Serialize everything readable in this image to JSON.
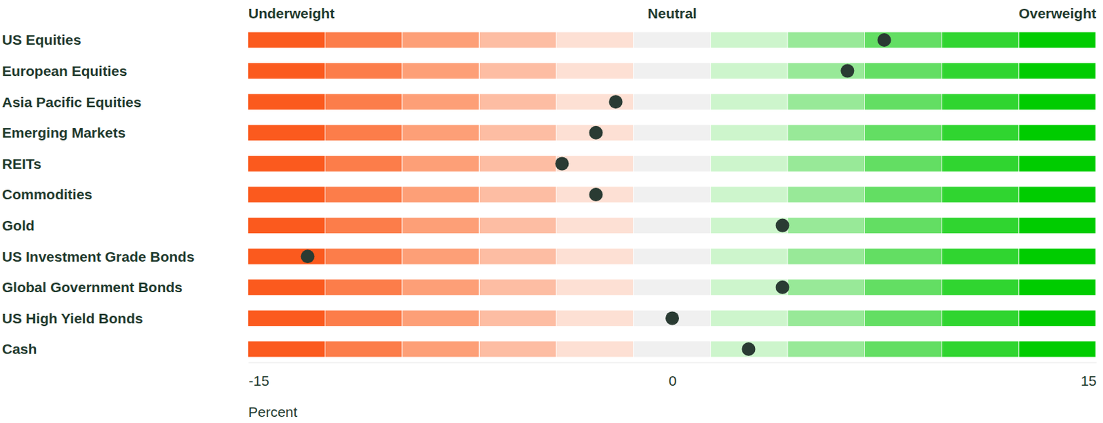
{
  "chart_data": {
    "type": "dot",
    "orientation": "horizontal",
    "categories": [
      "US Equities",
      "European Equities",
      "Asia Pacific Equities",
      "Emerging Markets",
      "REITs",
      "Commodities",
      "Gold",
      "US Investment Grade Bonds",
      "Global Government Bonds",
      "US High Yield Bonds",
      "Cash"
    ],
    "values": [
      7.5,
      6.2,
      -2,
      -2.7,
      -3.9,
      -2.7,
      3.9,
      -12.9,
      3.9,
      0,
      2.7
    ],
    "color": "#2a3b33",
    "xlim": [
      -15,
      15
    ],
    "xticks": [
      -15,
      0,
      15
    ],
    "x_label": "Percent",
    "annotations": [
      "Underweight",
      "Neutral",
      "Overweight"
    ]
  }
}
